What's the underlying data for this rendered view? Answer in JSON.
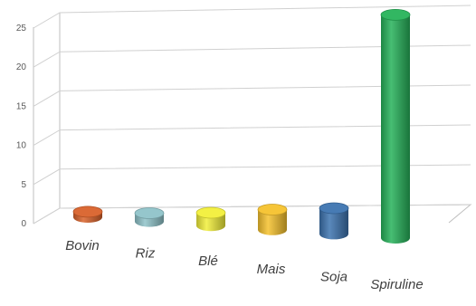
{
  "chart_data": {
    "type": "bar",
    "categories": [
      "Bovin",
      "Riz",
      "Blé",
      "Mais",
      "Soja",
      "Spiruline"
    ],
    "values": [
      0.6,
      0.9,
      1.4,
      2.2,
      2.8,
      24.3
    ],
    "colors": [
      "#d9622b",
      "#8fc3c9",
      "#f2ef3a",
      "#f6c22e",
      "#3d74b0",
      "#27b35a"
    ],
    "yticks": [
      0,
      5,
      10,
      15,
      20,
      25
    ],
    "ylim": [
      0,
      25
    ],
    "grid": true,
    "title": "",
    "xlabel": "",
    "ylabel": ""
  }
}
